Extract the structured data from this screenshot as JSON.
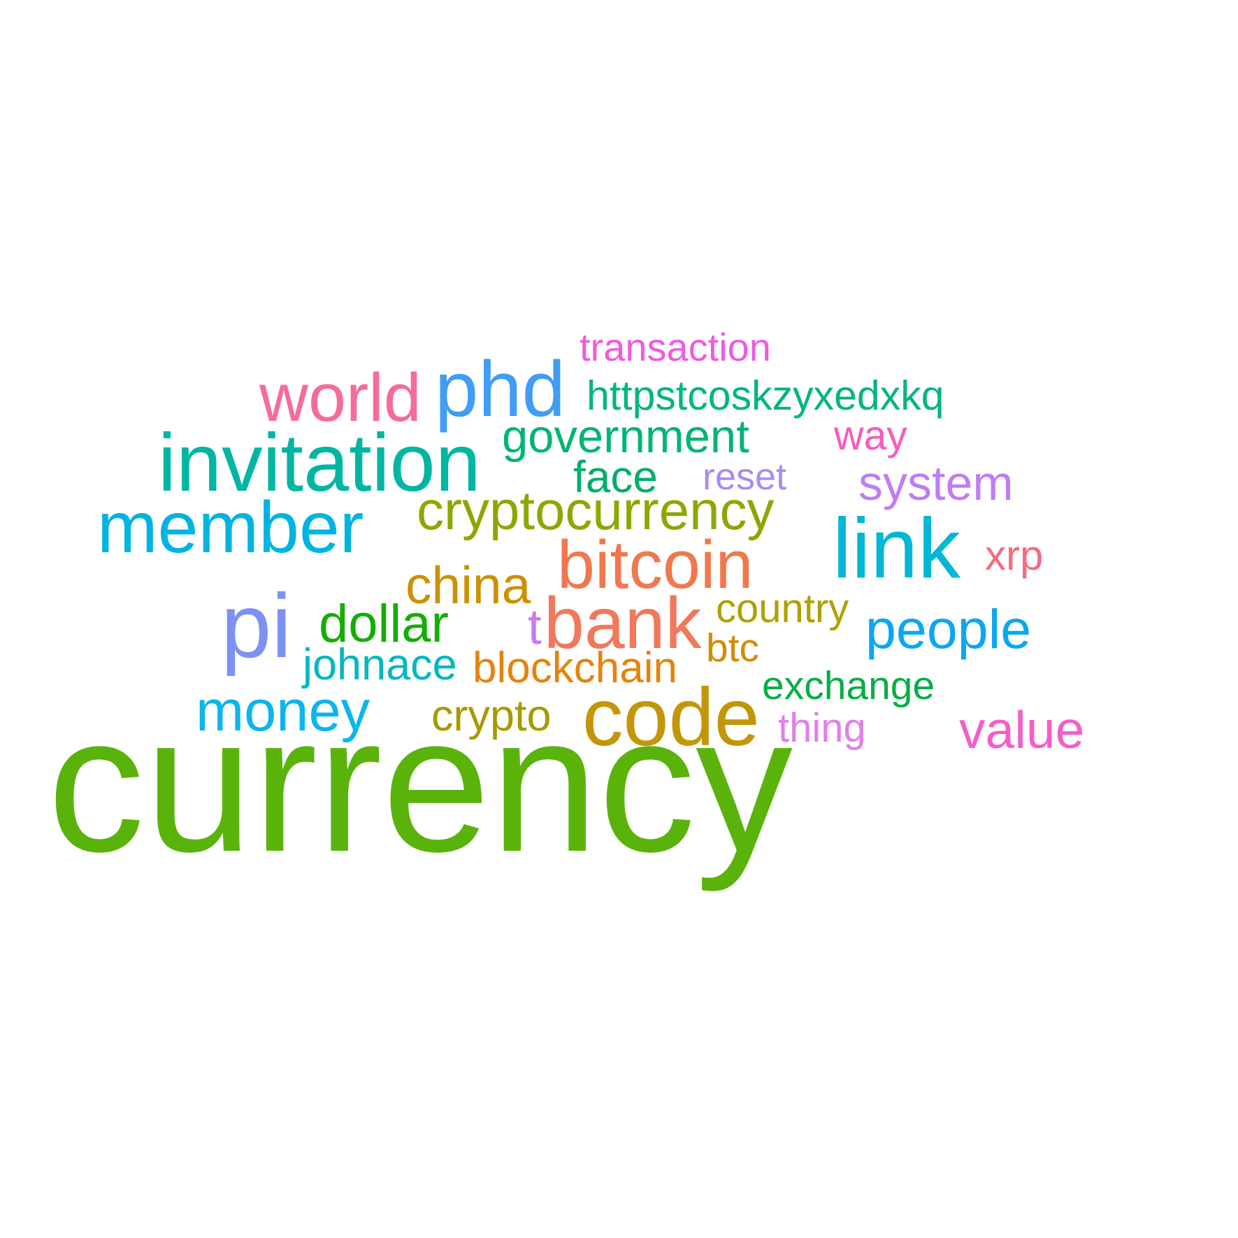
{
  "words": {
    "currency": {
      "text": "currency",
      "color": "#5AB30B"
    },
    "transaction": {
      "text": "transaction",
      "color": "#F05BDD"
    },
    "world": {
      "text": "world",
      "color": "#F56C9C"
    },
    "phd": {
      "text": "phd",
      "color": "#3F9DF5"
    },
    "httpst": {
      "text": "httpstcoskzyxedxkq",
      "color": "#00B582"
    },
    "government": {
      "text": "government",
      "color": "#00B572"
    },
    "way": {
      "text": "way",
      "color": "#F65CBC"
    },
    "invitation": {
      "text": "invitation",
      "color": "#00B6A2"
    },
    "face": {
      "text": "face",
      "color": "#00AE6A"
    },
    "reset": {
      "text": "reset",
      "color": "#A98AF5"
    },
    "system": {
      "text": "system",
      "color": "#C07CF6"
    },
    "member": {
      "text": "member",
      "color": "#00B4E2"
    },
    "cryptocurrency": {
      "text": "cryptocurrency",
      "color": "#8AA800"
    },
    "link": {
      "text": "link",
      "color": "#00B7D6"
    },
    "bitcoin": {
      "text": "bitcoin",
      "color": "#F0784F"
    },
    "xrp": {
      "text": "xrp",
      "color": "#F46C7E"
    },
    "china": {
      "text": "china",
      "color": "#CC9000"
    },
    "pi": {
      "text": "pi",
      "color": "#7E91F3"
    },
    "dollar": {
      "text": "dollar",
      "color": "#14AE00"
    },
    "t": {
      "text": "t",
      "color": "#CA79F0"
    },
    "bank": {
      "text": "bank",
      "color": "#F1785A"
    },
    "country": {
      "text": "country",
      "color": "#B0A000"
    },
    "people": {
      "text": "people",
      "color": "#0BA7F0"
    },
    "btc": {
      "text": "btc",
      "color": "#D18D00"
    },
    "johnace": {
      "text": "johnace",
      "color": "#00B8BF"
    },
    "blockchain": {
      "text": "blockchain",
      "color": "#E5830C"
    },
    "exchange": {
      "text": "exchange",
      "color": "#07AE45"
    },
    "money": {
      "text": "money",
      "color": "#0BB5ED"
    },
    "crypto": {
      "text": "crypto",
      "color": "#A69A00"
    },
    "code": {
      "text": "code",
      "color": "#C3960A"
    },
    "thing": {
      "text": "thing",
      "color": "#E27FE9"
    },
    "value": {
      "text": "value",
      "color": "#F55EC8"
    }
  }
}
